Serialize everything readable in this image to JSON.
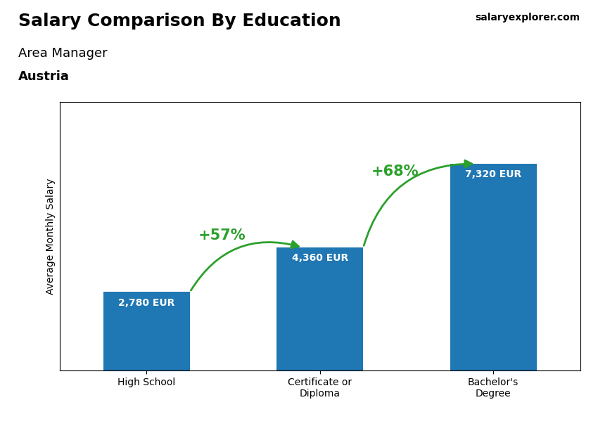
{
  "chart_data": {
    "type": "bar",
    "title": "Salary Comparison By Education",
    "subtitle": "Area Manager",
    "annotations": [
      "Austria",
      "salaryexplorer.com"
    ],
    "ylabel": "Average Monthly Salary",
    "categories": [
      "High School",
      "Certificate or\nDiploma",
      "Bachelor's\nDegree"
    ],
    "values": [
      2780,
      4360,
      7320
    ],
    "data_labels": true,
    "value_labels": [
      "2,780 EUR",
      "4,360 EUR",
      "7,320 EUR"
    ],
    "change_labels": [
      "+57%",
      "+68%"
    ],
    "ylim": [
      0,
      9500
    ],
    "tick_labels": "x"
  }
}
